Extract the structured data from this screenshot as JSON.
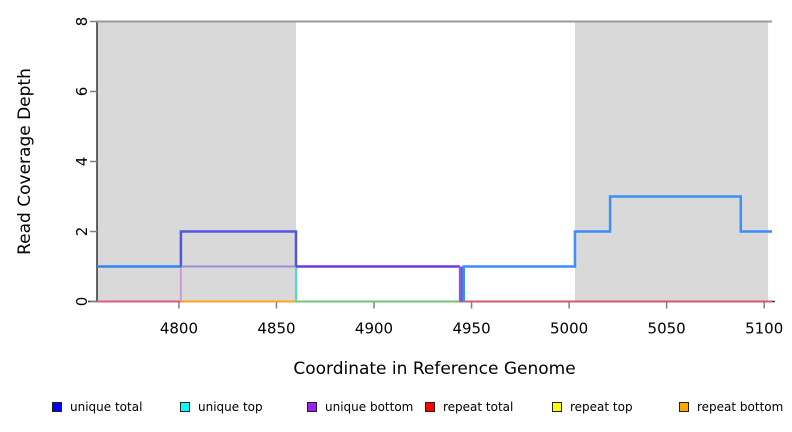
{
  "chart_data": {
    "type": "line",
    "title": "",
    "xlabel": "Coordinate in Reference Genome",
    "ylabel": "Read Coverage Depth",
    "xlim": [
      4758,
      5104
    ],
    "ylim": [
      0,
      8
    ],
    "x_ticks": [
      4800,
      4850,
      4900,
      4950,
      5000,
      5050,
      5100
    ],
    "y_ticks": [
      0,
      2,
      4,
      6,
      8
    ],
    "grid": false,
    "legend_position": "bottom",
    "plot_bg": "#ffffff",
    "axis_color": "#333333",
    "tick_color": "#808080",
    "shaded_regions": [
      {
        "name": "repeat-region-left",
        "x0": 4758,
        "x1": 4860,
        "color": "#d9d9d9"
      },
      {
        "name": "repeat-region-right",
        "x0": 5003,
        "x1": 5102,
        "color": "#d9d9d9"
      }
    ],
    "segments": [
      {
        "name": "max-depth-line",
        "color": "#9a9a9a",
        "width": 2,
        "points": [
          [
            4758,
            8
          ],
          [
            5104,
            8
          ]
        ]
      },
      {
        "name": "baseline-unique-left",
        "color": "#d95c84",
        "width": 2,
        "points": [
          [
            4758,
            0
          ],
          [
            4801,
            0
          ]
        ]
      },
      {
        "name": "baseline-repeat-orange",
        "color": "#ffa01e",
        "width": 2,
        "points": [
          [
            4801,
            0
          ],
          [
            4860,
            0
          ]
        ]
      },
      {
        "name": "baseline-top-strand-green",
        "color": "#72c472",
        "width": 2,
        "points": [
          [
            4860,
            0
          ],
          [
            4944,
            0
          ]
        ]
      },
      {
        "name": "baseline-right-crimson",
        "color": "#d4596f",
        "width": 2,
        "points": [
          [
            4944,
            0
          ],
          [
            5104,
            0
          ]
        ]
      },
      {
        "name": "unique-bottom-rise",
        "color": "#cd9ad6",
        "width": 2,
        "points": [
          [
            4801,
            0
          ],
          [
            4801,
            1
          ]
        ]
      },
      {
        "name": "unique-top-bottom-overlap",
        "color": "#9c8fd6",
        "width": 2,
        "points": [
          [
            4801,
            1
          ],
          [
            4860,
            1
          ]
        ]
      },
      {
        "name": "unique-top-fall",
        "color": "#40e0d0",
        "width": 2,
        "points": [
          [
            4860,
            1
          ],
          [
            4860,
            0
          ]
        ]
      },
      {
        "name": "unique-total-left",
        "color": "#2e86f0",
        "width": 2.5,
        "points": [
          [
            4758,
            1
          ],
          [
            4801,
            1
          ]
        ]
      },
      {
        "name": "unique-total-peak",
        "color": "#5156e3",
        "width": 2.5,
        "points": [
          [
            4801,
            1
          ],
          [
            4801,
            2
          ],
          [
            4860,
            2
          ],
          [
            4860,
            1
          ]
        ]
      },
      {
        "name": "unique-total-bottom-overlap",
        "color": "#6b3be0",
        "width": 2.5,
        "points": [
          [
            4860,
            1
          ],
          [
            4944,
            1
          ]
        ]
      },
      {
        "name": "unique-bottom-fall",
        "color": "#9a4fd0",
        "width": 2,
        "points": [
          [
            4944,
            1
          ],
          [
            4944,
            0
          ]
        ]
      },
      {
        "name": "unique-total-dip",
        "color": "#4169e1",
        "width": 2,
        "points": [
          [
            4945,
            1
          ],
          [
            4945,
            0
          ]
        ]
      },
      {
        "name": "unique-total-right",
        "color": "#3e8ef7",
        "width": 2.5,
        "points": [
          [
            4946,
            0
          ],
          [
            4946,
            1
          ],
          [
            5003,
            1
          ],
          [
            5003,
            2
          ],
          [
            5021,
            2
          ],
          [
            5021,
            3
          ],
          [
            5088,
            3
          ],
          [
            5088,
            2
          ],
          [
            5104,
            2
          ]
        ]
      }
    ],
    "legend": [
      {
        "label": "unique total",
        "color": "#0000ff"
      },
      {
        "label": "unique top",
        "color": "#00ffff"
      },
      {
        "label": "unique bottom",
        "color": "#a020f0"
      },
      {
        "label": "repeat total",
        "color": "#ff0000"
      },
      {
        "label": "repeat top",
        "color": "#ffff00"
      },
      {
        "label": "repeat bottom",
        "color": "#ffa500"
      }
    ]
  }
}
